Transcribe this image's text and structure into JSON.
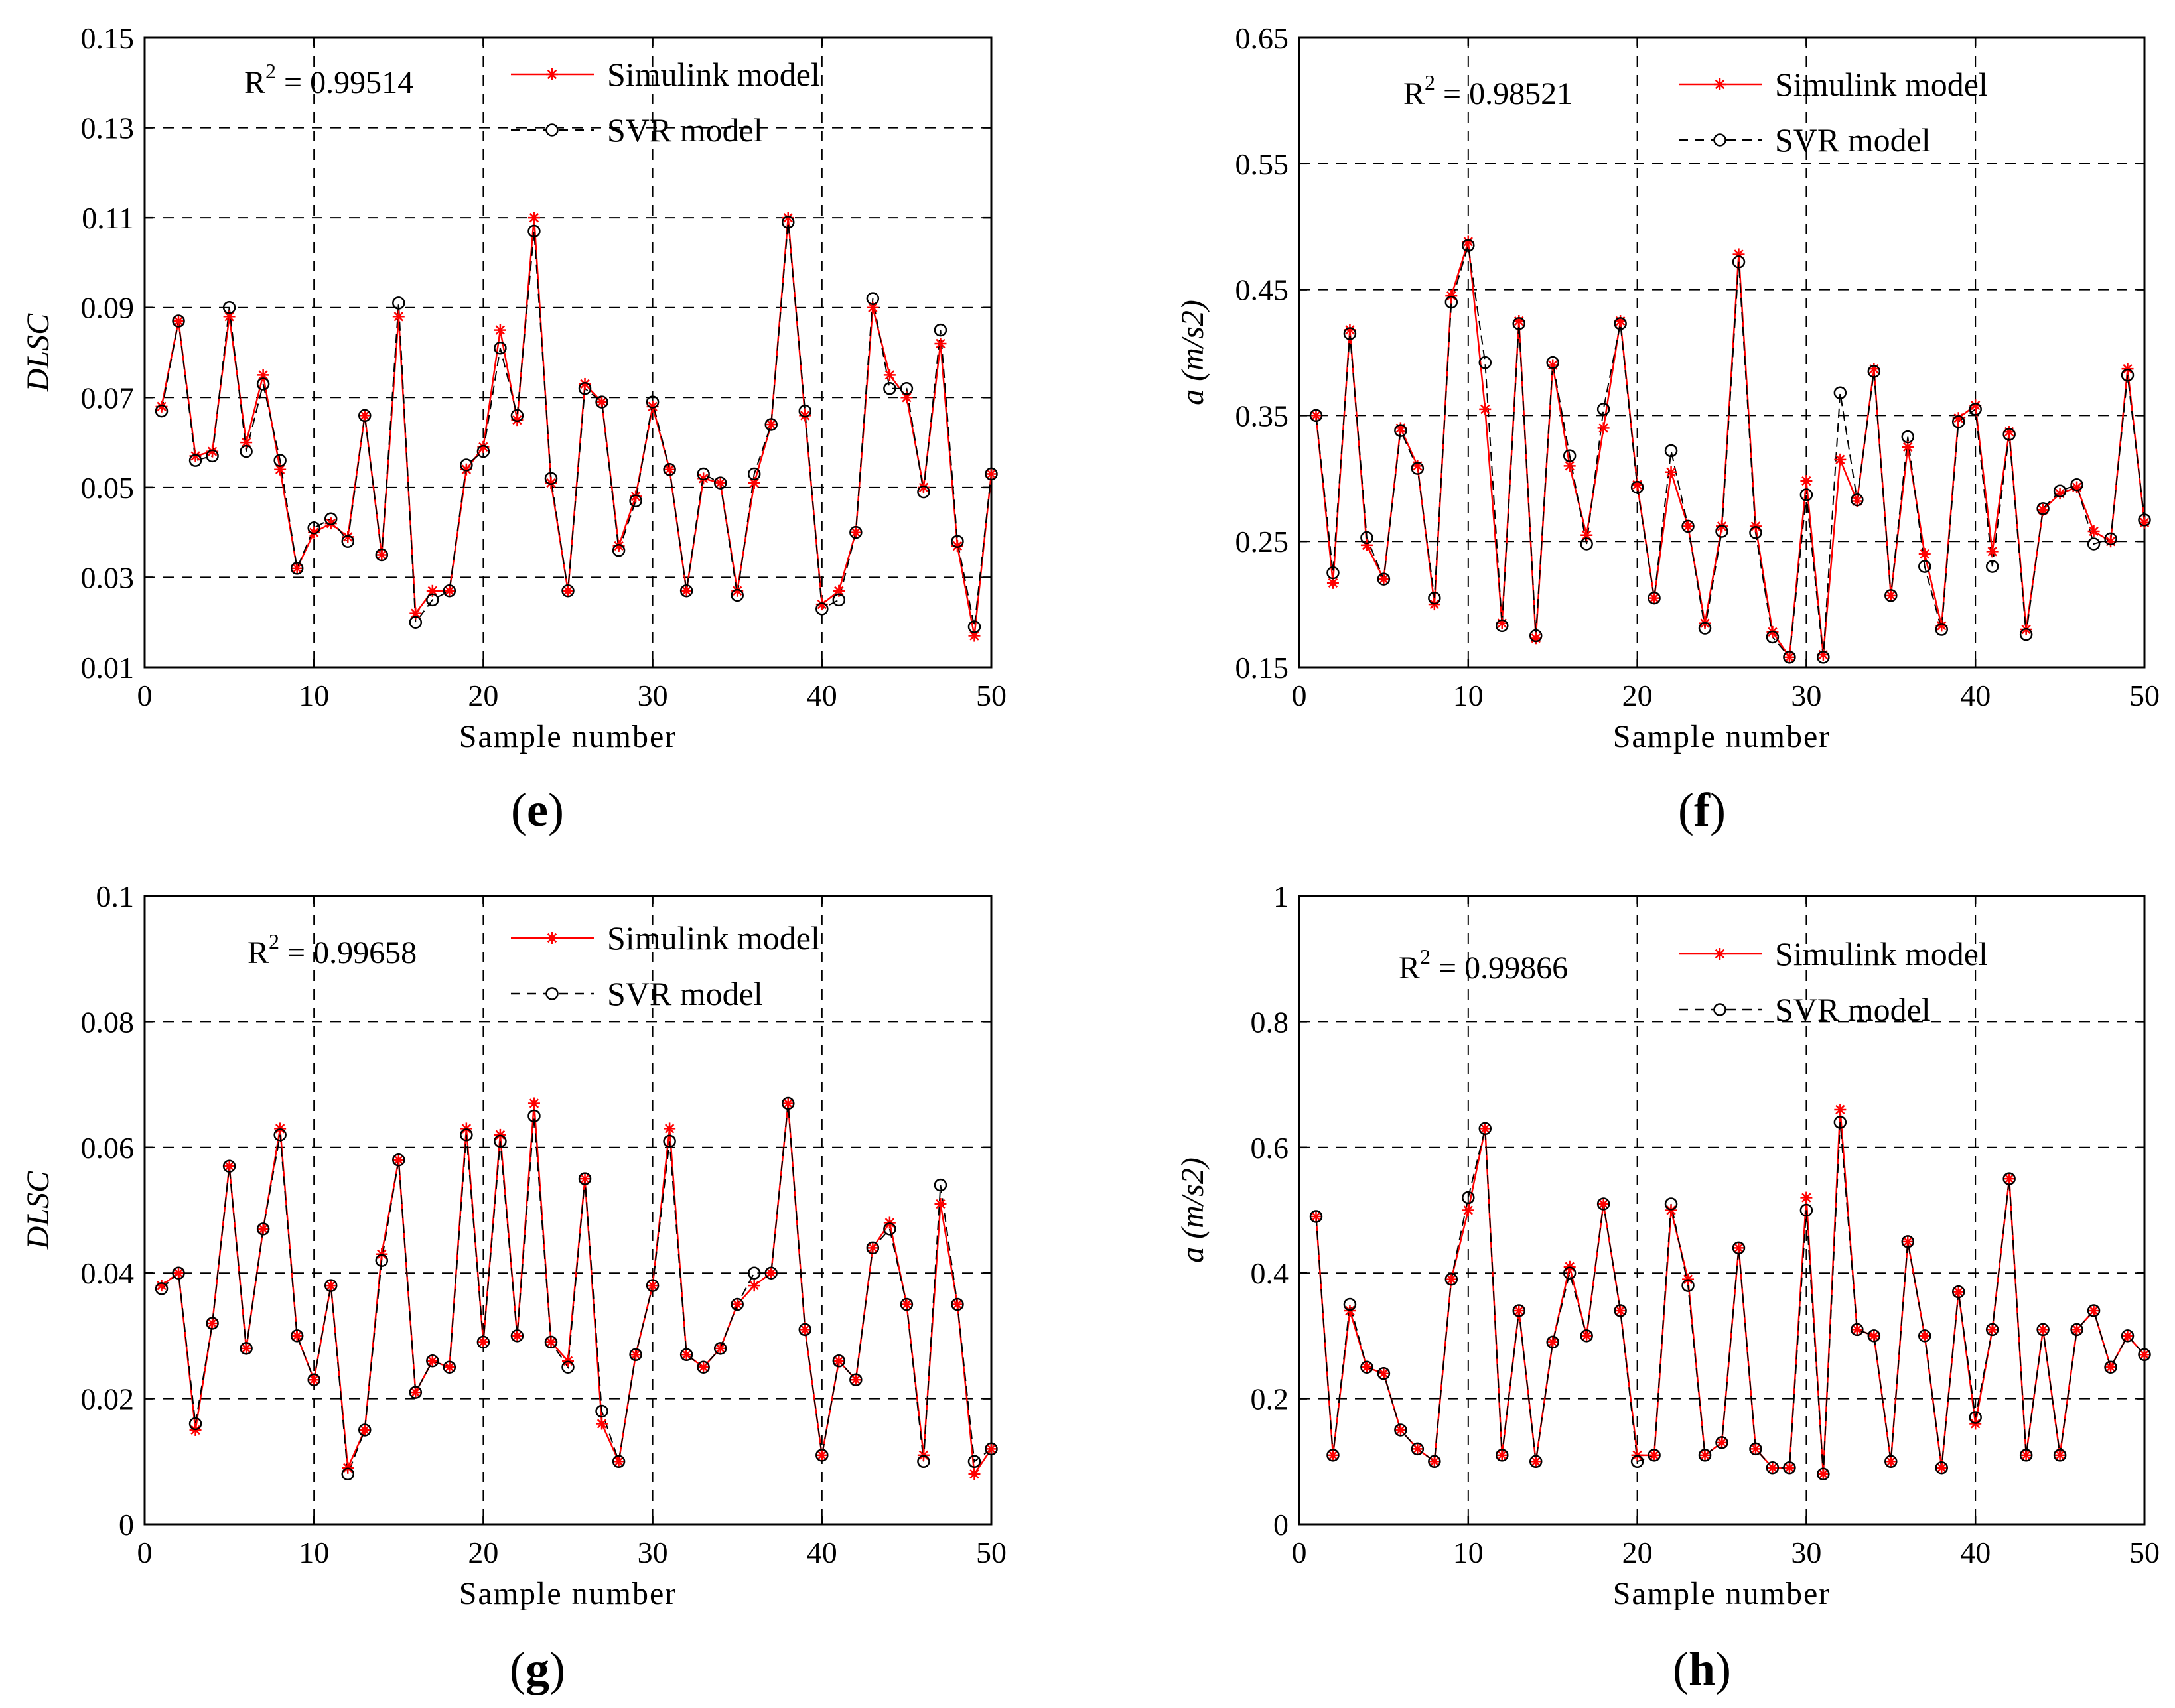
{
  "panels": [
    {
      "id": "e",
      "letter": "e",
      "r2_value": "0.99514",
      "chart_data": {
        "type": "line",
        "title": "",
        "xlabel": "Sample number",
        "ylabel": "DLSC",
        "xlim": [
          0,
          50
        ],
        "ylim": [
          0.01,
          0.15
        ],
        "xticks": [
          0,
          10,
          20,
          30,
          40,
          50
        ],
        "xtick_labels": [
          "0",
          "10",
          "20",
          "30",
          "40",
          "50"
        ],
        "yticks": [
          0.01,
          0.03,
          0.05,
          0.07,
          0.09,
          0.11,
          0.13,
          0.15
        ],
        "ytick_labels": [
          "0.01",
          "0.03",
          "0.05",
          "0.07",
          "0.09",
          "0.11",
          "0.13",
          "0.15"
        ],
        "grid": true,
        "legend_position": "top-center",
        "x": [
          1,
          2,
          3,
          4,
          5,
          6,
          7,
          8,
          9,
          10,
          11,
          12,
          13,
          14,
          15,
          16,
          17,
          18,
          19,
          20,
          21,
          22,
          23,
          24,
          25,
          26,
          27,
          28,
          29,
          30,
          31,
          32,
          33,
          34,
          35,
          36,
          37,
          38,
          39,
          40,
          41,
          42,
          43,
          44,
          45,
          46,
          47,
          48,
          49,
          50
        ],
        "series": [
          {
            "name": "Simulink model",
            "color": "#ff0000",
            "marker": "star",
            "values": [
              0.068,
              0.087,
              0.057,
              0.058,
              0.088,
              0.06,
              0.075,
              0.054,
              0.032,
              0.04,
              0.042,
              0.039,
              0.066,
              0.035,
              0.088,
              0.022,
              0.027,
              0.027,
              0.054,
              0.059,
              0.085,
              0.065,
              0.11,
              0.051,
              0.027,
              0.073,
              0.069,
              0.037,
              0.048,
              0.068,
              0.054,
              0.027,
              0.052,
              0.051,
              0.027,
              0.051,
              0.064,
              0.11,
              0.066,
              0.024,
              0.027,
              0.04,
              0.09,
              0.075,
              0.07,
              0.05,
              0.082,
              0.037,
              0.017,
              0.053
            ]
          },
          {
            "name": "SVR model",
            "color": "#000000",
            "marker": "circle",
            "values": [
              0.067,
              0.087,
              0.056,
              0.057,
              0.09,
              0.058,
              0.073,
              0.056,
              0.032,
              0.041,
              0.043,
              0.038,
              0.066,
              0.035,
              0.091,
              0.02,
              0.025,
              0.027,
              0.055,
              0.058,
              0.081,
              0.066,
              0.107,
              0.052,
              0.027,
              0.072,
              0.069,
              0.036,
              0.047,
              0.069,
              0.054,
              0.027,
              0.053,
              0.051,
              0.026,
              0.053,
              0.064,
              0.109,
              0.067,
              0.023,
              0.025,
              0.04,
              0.092,
              0.072,
              0.072,
              0.049,
              0.085,
              0.038,
              0.019,
              0.053
            ]
          }
        ]
      }
    },
    {
      "id": "f",
      "letter": "f",
      "r2_value": "0.98521",
      "chart_data": {
        "type": "line",
        "title": "",
        "xlabel": "Sample number",
        "ylabel": "a (m/s2)",
        "xlim": [
          0,
          50
        ],
        "ylim": [
          0.15,
          0.65
        ],
        "xticks": [
          0,
          10,
          20,
          30,
          40,
          50
        ],
        "xtick_labels": [
          "0",
          "10",
          "20",
          "30",
          "40",
          "50"
        ],
        "yticks": [
          0.15,
          0.25,
          0.35,
          0.45,
          0.55,
          0.65
        ],
        "ytick_labels": [
          "0.15",
          "0.25",
          "0.35",
          "0.45",
          "0.55",
          "0.65"
        ],
        "grid": true,
        "legend_position": "top-right",
        "x": [
          1,
          2,
          3,
          4,
          5,
          6,
          7,
          8,
          9,
          10,
          11,
          12,
          13,
          14,
          15,
          16,
          17,
          18,
          19,
          20,
          21,
          22,
          23,
          24,
          25,
          26,
          27,
          28,
          29,
          30,
          31,
          32,
          33,
          34,
          35,
          36,
          37,
          38,
          39,
          40,
          41,
          42,
          43,
          44,
          45,
          46,
          47,
          48,
          49,
          50
        ],
        "series": [
          {
            "name": "Simulink model",
            "color": "#ff0000",
            "marker": "star",
            "values": [
              0.35,
              0.217,
              0.418,
              0.247,
              0.22,
              0.34,
              0.31,
              0.2,
              0.445,
              0.488,
              0.355,
              0.185,
              0.425,
              0.173,
              0.39,
              0.31,
              0.255,
              0.34,
              0.425,
              0.295,
              0.205,
              0.305,
              0.262,
              0.185,
              0.262,
              0.478,
              0.262,
              0.178,
              0.158,
              0.298,
              0.16,
              0.315,
              0.282,
              0.387,
              0.207,
              0.325,
              0.24,
              0.183,
              0.348,
              0.358,
              0.242,
              0.337,
              0.18,
              0.275,
              0.288,
              0.293,
              0.258,
              0.25,
              0.387,
              0.265
            ]
          },
          {
            "name": "SVR model",
            "color": "#000000",
            "marker": "circle",
            "values": [
              0.35,
              0.225,
              0.415,
              0.253,
              0.22,
              0.338,
              0.308,
              0.205,
              0.44,
              0.485,
              0.392,
              0.183,
              0.423,
              0.175,
              0.392,
              0.318,
              0.248,
              0.355,
              0.423,
              0.293,
              0.205,
              0.322,
              0.262,
              0.181,
              0.258,
              0.472,
              0.257,
              0.174,
              0.158,
              0.287,
              0.158,
              0.368,
              0.283,
              0.385,
              0.207,
              0.333,
              0.23,
              0.18,
              0.345,
              0.355,
              0.23,
              0.335,
              0.176,
              0.276,
              0.29,
              0.295,
              0.248,
              0.252,
              0.382,
              0.267
            ]
          }
        ]
      }
    },
    {
      "id": "g",
      "letter": "g",
      "r2_value": "0.99658",
      "chart_data": {
        "type": "line",
        "title": "",
        "xlabel": "Sample number",
        "ylabel": "DLSC",
        "xlim": [
          0,
          50
        ],
        "ylim": [
          0,
          0.1
        ],
        "xticks": [
          0,
          10,
          20,
          30,
          40,
          50
        ],
        "xtick_labels": [
          "0",
          "10",
          "20",
          "30",
          "40",
          "50"
        ],
        "yticks": [
          0,
          0.02,
          0.04,
          0.06,
          0.08,
          0.1
        ],
        "ytick_labels": [
          "0",
          "0.02",
          "0.04",
          "0.06",
          "0.08",
          "0.1"
        ],
        "grid": true,
        "legend_position": "top-center",
        "x": [
          1,
          2,
          3,
          4,
          5,
          6,
          7,
          8,
          9,
          10,
          11,
          12,
          13,
          14,
          15,
          16,
          17,
          18,
          19,
          20,
          21,
          22,
          23,
          24,
          25,
          26,
          27,
          28,
          29,
          30,
          31,
          32,
          33,
          34,
          35,
          36,
          37,
          38,
          39,
          40,
          41,
          42,
          43,
          44,
          45,
          46,
          47,
          48,
          49,
          50
        ],
        "series": [
          {
            "name": "Simulink model",
            "color": "#ff0000",
            "marker": "star",
            "values": [
              0.038,
              0.04,
              0.015,
              0.032,
              0.057,
              0.028,
              0.047,
              0.063,
              0.03,
              0.023,
              0.038,
              0.009,
              0.015,
              0.043,
              0.058,
              0.021,
              0.026,
              0.025,
              0.063,
              0.029,
              0.062,
              0.03,
              0.067,
              0.029,
              0.026,
              0.055,
              0.016,
              0.01,
              0.027,
              0.038,
              0.063,
              0.027,
              0.025,
              0.028,
              0.035,
              0.038,
              0.04,
              0.067,
              0.031,
              0.011,
              0.026,
              0.023,
              0.044,
              0.048,
              0.035,
              0.011,
              0.051,
              0.035,
              0.008,
              0.012
            ]
          },
          {
            "name": "SVR model",
            "color": "#000000",
            "marker": "circle",
            "values": [
              0.0375,
              0.04,
              0.016,
              0.032,
              0.057,
              0.028,
              0.047,
              0.062,
              0.03,
              0.023,
              0.038,
              0.008,
              0.015,
              0.042,
              0.058,
              0.021,
              0.026,
              0.025,
              0.062,
              0.029,
              0.061,
              0.03,
              0.065,
              0.029,
              0.025,
              0.055,
              0.018,
              0.01,
              0.027,
              0.038,
              0.061,
              0.027,
              0.025,
              0.028,
              0.035,
              0.04,
              0.04,
              0.067,
              0.031,
              0.011,
              0.026,
              0.023,
              0.044,
              0.047,
              0.035,
              0.01,
              0.054,
              0.035,
              0.01,
              0.012
            ]
          }
        ]
      }
    },
    {
      "id": "h",
      "letter": "h",
      "r2_value": "0.99866",
      "chart_data": {
        "type": "line",
        "title": "",
        "xlabel": "Sample number",
        "ylabel": "a (m/s2)",
        "xlim": [
          0,
          50
        ],
        "ylim": [
          0,
          1
        ],
        "xticks": [
          0,
          10,
          20,
          30,
          40,
          50
        ],
        "xtick_labels": [
          "0",
          "10",
          "20",
          "30",
          "40",
          "50"
        ],
        "yticks": [
          0,
          0.2,
          0.4,
          0.6,
          0.8,
          1
        ],
        "ytick_labels": [
          "0",
          "0.2",
          "0.4",
          "0.6",
          "0.8",
          "1"
        ],
        "grid": true,
        "legend_position": "top-right",
        "x": [
          1,
          2,
          3,
          4,
          5,
          6,
          7,
          8,
          9,
          10,
          11,
          12,
          13,
          14,
          15,
          16,
          17,
          18,
          19,
          20,
          21,
          22,
          23,
          24,
          25,
          26,
          27,
          28,
          29,
          30,
          31,
          32,
          33,
          34,
          35,
          36,
          37,
          38,
          39,
          40,
          41,
          42,
          43,
          44,
          45,
          46,
          47,
          48,
          49,
          50
        ],
        "series": [
          {
            "name": "Simulink model",
            "color": "#ff0000",
            "marker": "star",
            "values": [
              0.49,
              0.11,
              0.34,
              0.25,
              0.24,
              0.15,
              0.12,
              0.1,
              0.39,
              0.5,
              0.63,
              0.11,
              0.34,
              0.1,
              0.29,
              0.41,
              0.3,
              0.51,
              0.34,
              0.11,
              0.11,
              0.5,
              0.39,
              0.11,
              0.13,
              0.44,
              0.12,
              0.09,
              0.09,
              0.52,
              0.08,
              0.66,
              0.31,
              0.3,
              0.1,
              0.45,
              0.3,
              0.09,
              0.37,
              0.16,
              0.31,
              0.55,
              0.11,
              0.31,
              0.11,
              0.31,
              0.34,
              0.25,
              0.3,
              0.27
            ]
          },
          {
            "name": "SVR model",
            "color": "#000000",
            "marker": "circle",
            "values": [
              0.49,
              0.11,
              0.35,
              0.25,
              0.24,
              0.15,
              0.12,
              0.1,
              0.39,
              0.52,
              0.63,
              0.11,
              0.34,
              0.1,
              0.29,
              0.4,
              0.3,
              0.51,
              0.34,
              0.1,
              0.11,
              0.51,
              0.38,
              0.11,
              0.13,
              0.44,
              0.12,
              0.09,
              0.09,
              0.5,
              0.08,
              0.64,
              0.31,
              0.3,
              0.1,
              0.45,
              0.3,
              0.09,
              0.37,
              0.17,
              0.31,
              0.55,
              0.11,
              0.31,
              0.11,
              0.31,
              0.34,
              0.25,
              0.3,
              0.27
            ]
          }
        ]
      }
    }
  ]
}
